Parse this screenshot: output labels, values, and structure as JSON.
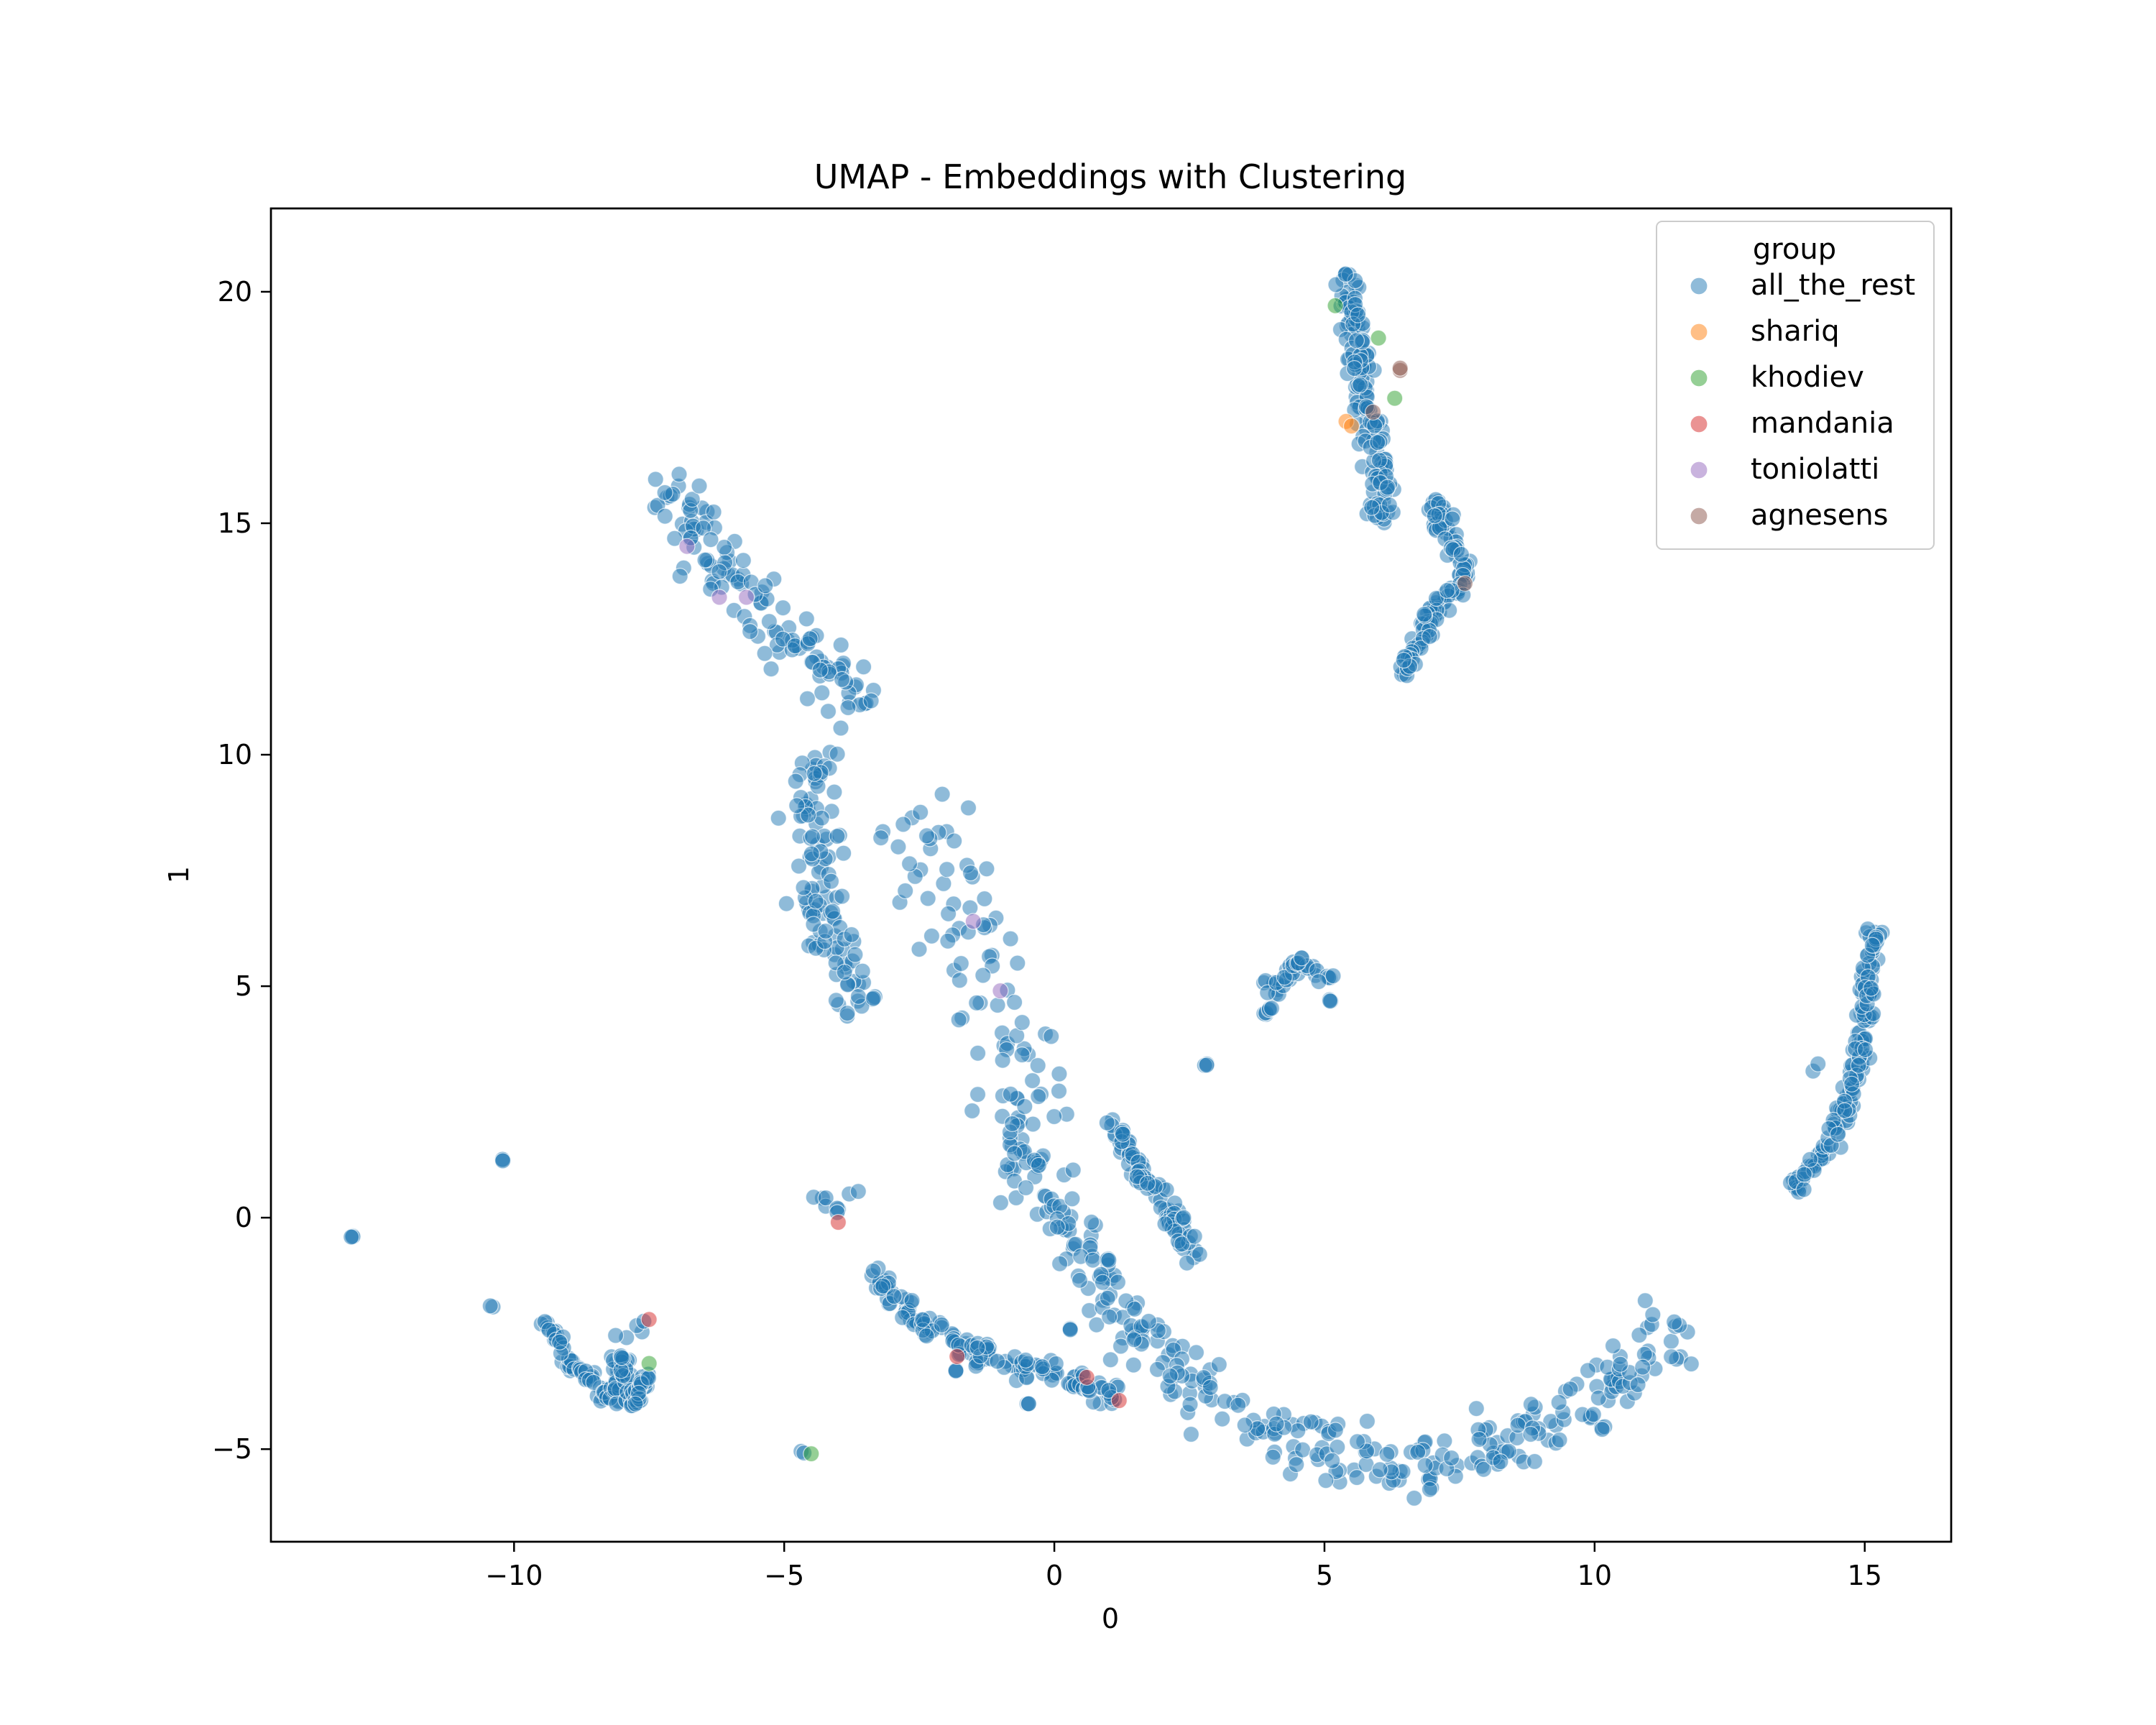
{
  "chart_data": {
    "type": "scatter",
    "title": "UMAP - Embeddings with Clustering",
    "xlabel": "0",
    "ylabel": "1",
    "xlim": [
      -14.5,
      16.6
    ],
    "ylim": [
      -7.0,
      21.8
    ],
    "xticks": [
      -10,
      -5,
      0,
      5,
      10,
      15
    ],
    "xtick_labels": [
      "−10",
      "−5",
      "0",
      "5",
      "10",
      "15"
    ],
    "yticks": [
      -5,
      0,
      5,
      10,
      15,
      20
    ],
    "ytick_labels": [
      "−5",
      "0",
      "5",
      "10",
      "15",
      "20"
    ],
    "grid": false,
    "legend": {
      "title": "group",
      "placement": "top-right",
      "entries": [
        "all_the_rest",
        "shariq",
        "khodiev",
        "mandania",
        "toniolatti",
        "agnesens"
      ]
    },
    "colors": {
      "all_the_rest": "#1f77b4",
      "shariq": "#ff7f0e",
      "khodiev": "#2ca02c",
      "mandania": "#d62728",
      "toniolatti": "#9467bd",
      "agnesens": "#8c564b"
    },
    "cluster_shapes": [
      {
        "path": [
          [
            -7.4,
            16.0
          ],
          [
            -6.6,
            14.8
          ],
          [
            -5.7,
            13.6
          ],
          [
            -4.8,
            12.2
          ],
          [
            -4.0,
            11.6
          ],
          [
            -3.5,
            11.0
          ]
        ],
        "width": 0.55,
        "density": 28
      },
      {
        "path": [
          [
            -4.5,
            10.0
          ],
          [
            -4.3,
            8.0
          ],
          [
            -4.4,
            6.5
          ],
          [
            -3.5,
            4.5
          ]
        ],
        "width": 0.55,
        "density": 30
      },
      {
        "path": [
          [
            -3.0,
            8.6
          ],
          [
            -2.2,
            7.5
          ],
          [
            -1.6,
            6.2
          ],
          [
            -1.0,
            4.8
          ],
          [
            -0.6,
            3.4
          ],
          [
            -0.3,
            2.0
          ]
        ],
        "width": 1.0,
        "density": 18
      },
      {
        "path": [
          [
            -0.9,
            2.2
          ],
          [
            -0.6,
            1.0
          ],
          [
            0.0,
            0.2
          ],
          [
            0.6,
            -0.6
          ],
          [
            1.2,
            -2.2
          ],
          [
            2.2,
            -3.2
          ],
          [
            3.5,
            -4.2
          ],
          [
            5.0,
            -5.0
          ],
          [
            6.5,
            -5.4
          ],
          [
            7.5,
            -5.5
          ],
          [
            8.5,
            -4.8
          ],
          [
            9.5,
            -4.4
          ],
          [
            10.5,
            -3.6
          ],
          [
            11.6,
            -2.3
          ]
        ],
        "width": 0.55,
        "density": 26
      },
      {
        "path": [
          [
            1.0,
            2.2
          ],
          [
            1.6,
            1.0
          ],
          [
            2.2,
            0.0
          ],
          [
            2.6,
            -0.9
          ]
        ],
        "width": 0.2,
        "density": 36
      },
      {
        "path": [
          [
            -3.4,
            -1.2
          ],
          [
            -2.5,
            -2.3
          ],
          [
            -1.5,
            -2.9
          ],
          [
            -0.3,
            -3.3
          ],
          [
            0.5,
            -3.6
          ],
          [
            1.2,
            -3.9
          ]
        ],
        "width": 0.22,
        "density": 34
      },
      {
        "path": [
          [
            5.4,
            20.4
          ],
          [
            5.6,
            19.0
          ],
          [
            5.8,
            17.5
          ],
          [
            6.0,
            16.0
          ],
          [
            6.1,
            15.0
          ]
        ],
        "width": 0.28,
        "density": 42
      },
      {
        "path": [
          [
            7.0,
            15.5
          ],
          [
            7.4,
            14.5
          ],
          [
            7.6,
            13.8
          ],
          [
            7.0,
            13.0
          ],
          [
            6.6,
            12.2
          ],
          [
            6.5,
            11.7
          ]
        ],
        "width": 0.18,
        "density": 42
      },
      {
        "path": [
          [
            13.7,
            0.6
          ],
          [
            14.3,
            1.5
          ],
          [
            14.8,
            2.8
          ],
          [
            15.0,
            4.5
          ],
          [
            15.2,
            6.2
          ]
        ],
        "width": 0.18,
        "density": 40
      },
      {
        "path": [
          [
            14.0,
            3.2
          ],
          [
            14.2,
            3.3
          ]
        ],
        "width": 0.08,
        "density": 8
      },
      {
        "path": [
          [
            -9.5,
            -2.2
          ],
          [
            -9.2,
            -2.6
          ],
          [
            -8.9,
            -3.3
          ],
          [
            -8.5,
            -3.5
          ],
          [
            -8.2,
            -4.0
          ],
          [
            -8.0,
            -3.0
          ],
          [
            -7.8,
            -4.1
          ],
          [
            -7.5,
            -3.3
          ]
        ],
        "width": 0.12,
        "density": 36
      },
      {
        "path": [
          [
            -8.2,
            -2.6
          ],
          [
            -7.4,
            -2.2
          ]
        ],
        "width": 0.1,
        "density": 8
      },
      {
        "path": [
          [
            3.8,
            5.1
          ],
          [
            4.2,
            4.9
          ],
          [
            4.5,
            5.6
          ],
          [
            4.9,
            5.2
          ],
          [
            5.2,
            5.2
          ]
        ],
        "width": 0.12,
        "density": 24
      },
      {
        "path": [
          [
            -4.4,
            0.5
          ],
          [
            -4.0,
            0.1
          ],
          [
            -3.6,
            0.7
          ]
        ],
        "width": 0.1,
        "density": 10
      },
      {
        "path": [
          [
            -4.9,
            -5.0
          ],
          [
            -4.5,
            -5.1
          ]
        ],
        "width": 0.05,
        "density": 8
      },
      {
        "path": [
          [
            -10.5,
            -1.8
          ],
          [
            -10.3,
            -1.9
          ]
        ],
        "width": 0.05,
        "density": 4
      }
    ],
    "all_the_rest_points": [
      [
        -13.0,
        -0.4
      ],
      [
        -10.2,
        1.25
      ],
      [
        2.8,
        3.3
      ],
      [
        3.9,
        4.4
      ],
      [
        4.0,
        4.5
      ],
      [
        5.1,
        4.7
      ],
      [
        -1.8,
        -3.3
      ],
      [
        -0.5,
        -4.0
      ],
      [
        0.3,
        -2.4
      ],
      [
        1.0,
        -0.9
      ]
    ],
    "groups": [
      {
        "name": "shariq",
        "points": [
          [
            5.4,
            17.2
          ],
          [
            5.5,
            17.1
          ]
        ]
      },
      {
        "name": "khodiev",
        "points": [
          [
            5.2,
            19.7
          ],
          [
            6.0,
            19.0
          ],
          [
            6.3,
            17.7
          ],
          [
            -7.5,
            -3.15
          ],
          [
            -4.5,
            -5.1
          ]
        ]
      },
      {
        "name": "mandania",
        "points": [
          [
            -4.0,
            -0.1
          ],
          [
            -1.8,
            -3.0
          ],
          [
            0.6,
            -3.45
          ],
          [
            1.2,
            -3.95
          ],
          [
            -7.5,
            -2.2
          ]
        ]
      },
      {
        "name": "toniolatti",
        "points": [
          [
            -6.8,
            14.5
          ],
          [
            -6.2,
            13.4
          ],
          [
            -5.7,
            13.4
          ],
          [
            -1.5,
            6.4
          ],
          [
            -1.0,
            4.9
          ]
        ]
      },
      {
        "name": "agnesens",
        "points": [
          [
            6.4,
            18.3
          ],
          [
            5.9,
            17.4
          ],
          [
            7.6,
            13.7
          ],
          [
            6.4,
            18.35
          ]
        ]
      }
    ]
  }
}
